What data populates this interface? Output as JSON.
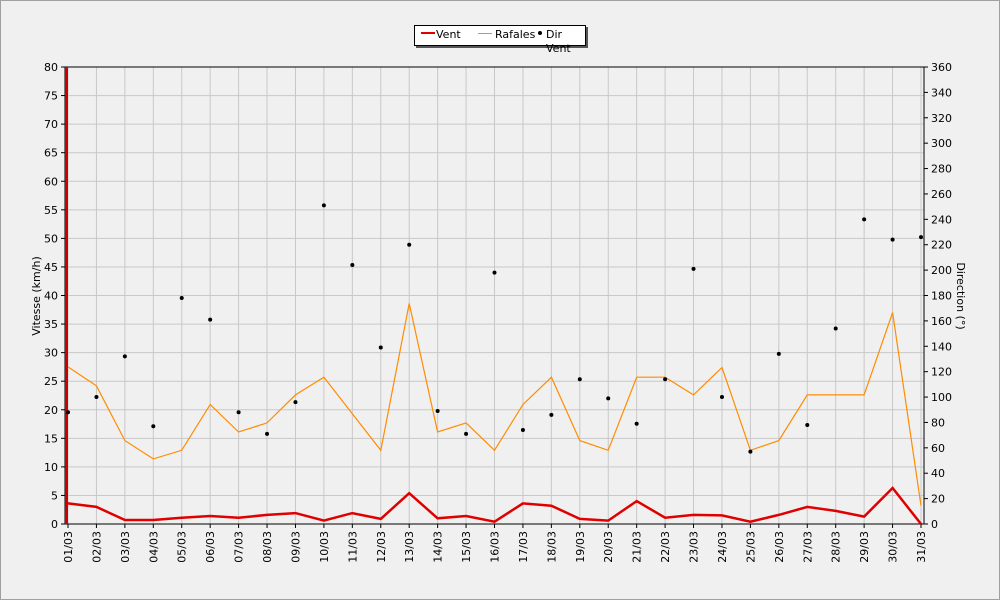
{
  "chart_data": {
    "type": "line",
    "x": [
      "01/03",
      "02/03",
      "03/03",
      "04/03",
      "05/03",
      "06/03",
      "07/03",
      "08/03",
      "09/03",
      "10/03",
      "11/03",
      "12/03",
      "13/03",
      "14/03",
      "15/03",
      "16/03",
      "17/03",
      "18/03",
      "19/03",
      "20/03",
      "21/03",
      "22/03",
      "23/03",
      "24/03",
      "25/03",
      "26/03",
      "27/03",
      "28/03",
      "29/03",
      "30/03",
      "31/03"
    ],
    "ylabel": "Vitesse (km/h)",
    "ylabel_right": "Direction (°)",
    "ylim": [
      0,
      80
    ],
    "ylim_right": [
      0,
      360
    ],
    "yticks": [
      0,
      5,
      10,
      15,
      20,
      25,
      30,
      35,
      40,
      45,
      50,
      55,
      60,
      65,
      70,
      75,
      80
    ],
    "yticks_right": [
      0,
      20,
      40,
      60,
      80,
      100,
      120,
      140,
      160,
      180,
      200,
      220,
      240,
      260,
      280,
      300,
      320,
      340,
      360
    ],
    "grid": true,
    "legend_position": "top-center",
    "series": [
      {
        "name": "Vent",
        "axis": "left",
        "style": "line",
        "color": "#e00000",
        "values": [
          3.6,
          3.0,
          0.7,
          0.7,
          1.1,
          1.4,
          1.1,
          1.6,
          1.9,
          0.6,
          1.9,
          0.9,
          5.4,
          1.0,
          1.4,
          0.4,
          3.6,
          3.2,
          0.9,
          0.6,
          4.0,
          1.1,
          1.6,
          1.5,
          0.4,
          1.6,
          3.0,
          2.3,
          1.3,
          6.3,
          0.0
        ]
      },
      {
        "name": "Rafales",
        "axis": "left",
        "style": "line",
        "color": "#ff8c00",
        "values": [
          27.5,
          24.2,
          14.6,
          11.4,
          12.9,
          20.9,
          16.1,
          17.7,
          22.6,
          25.7,
          19.3,
          12.9,
          38.6,
          16.1,
          17.7,
          12.9,
          20.9,
          25.7,
          14.6,
          12.9,
          25.7,
          25.7,
          22.6,
          27.4,
          12.9,
          14.6,
          22.6,
          22.6,
          22.6,
          37.0,
          3.2
        ]
      },
      {
        "name": "Dir Vent",
        "axis": "right",
        "style": "points",
        "color": "#000000",
        "values": [
          88,
          100,
          132,
          77,
          178,
          161,
          88,
          71,
          96,
          251,
          204,
          139,
          220,
          89,
          71,
          198,
          74,
          86,
          114,
          99,
          79,
          114,
          201,
          100,
          57,
          134,
          78,
          154,
          240,
          224,
          226
        ]
      }
    ]
  }
}
